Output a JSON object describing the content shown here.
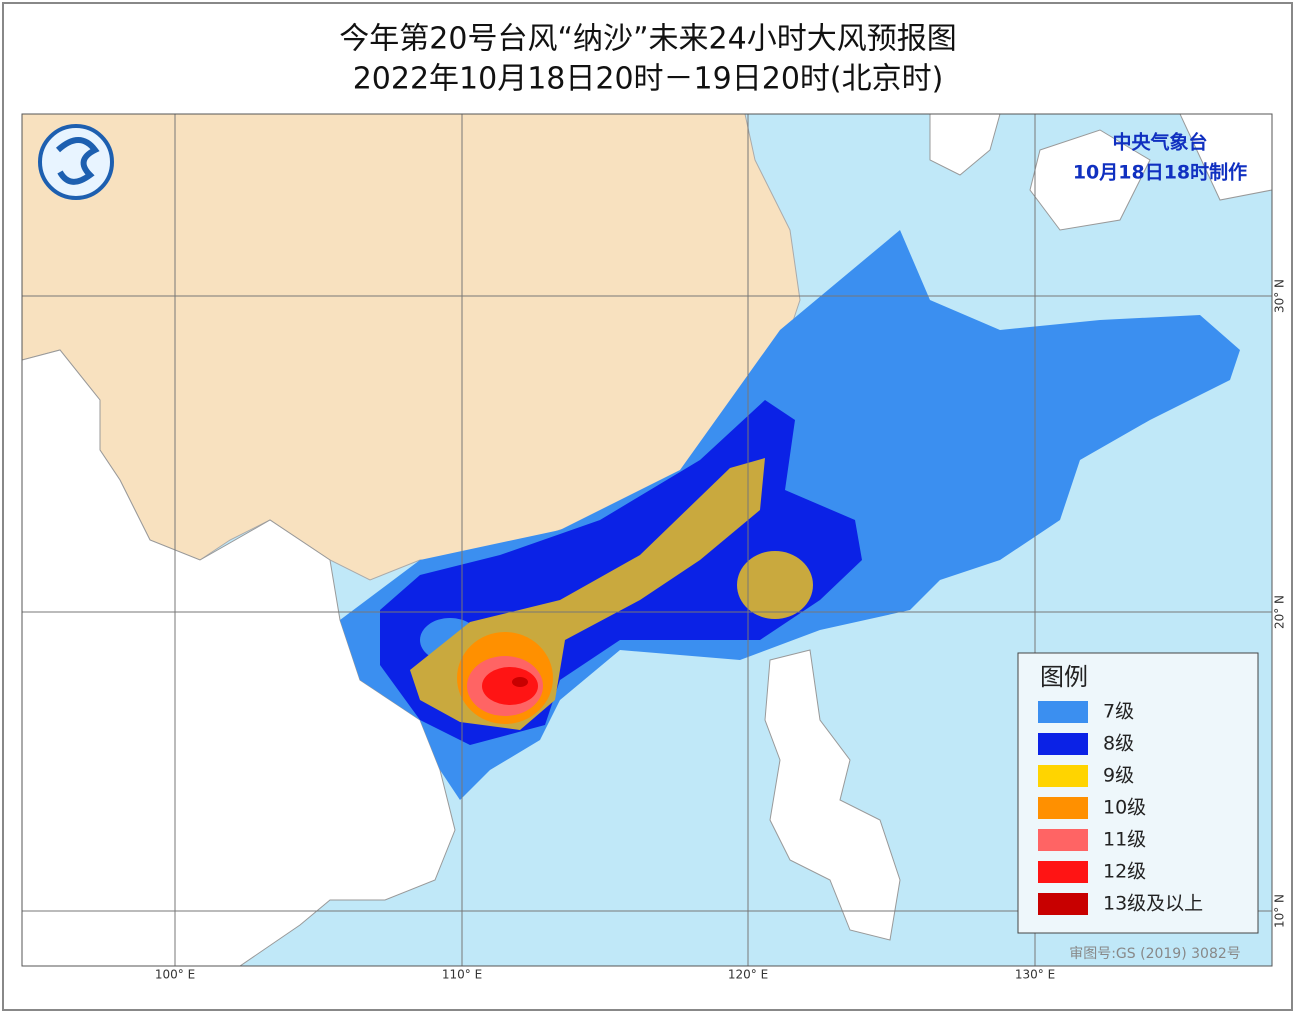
{
  "header": {
    "title": "今年第20号台风“纳沙”未来24小时大风预报图",
    "subtitle": "2022年10月18日20时－19日20时(北京时)"
  },
  "agency": {
    "name": "中央气象台",
    "made": "10月18日18时制作"
  },
  "legend": {
    "title": "图例",
    "items": [
      {
        "label": "7级",
        "color": "#3b8ff0"
      },
      {
        "label": "8级",
        "color": "#0b22e6"
      },
      {
        "label": "9级",
        "color": "#ffd400"
      },
      {
        "label": "10级",
        "color": "#ff9000"
      },
      {
        "label": "11级",
        "color": "#ff6464"
      },
      {
        "label": "12级",
        "color": "#ff1414"
      },
      {
        "label": "13级及以上",
        "color": "#c80000"
      }
    ]
  },
  "longitude_labels": [
    "100° E",
    "110° E",
    "120° E",
    "130° E"
  ],
  "latitude_labels": [
    "30° N",
    "20° N",
    "10° N"
  ],
  "review_number": "审图号:GS (2019) 3082号"
}
